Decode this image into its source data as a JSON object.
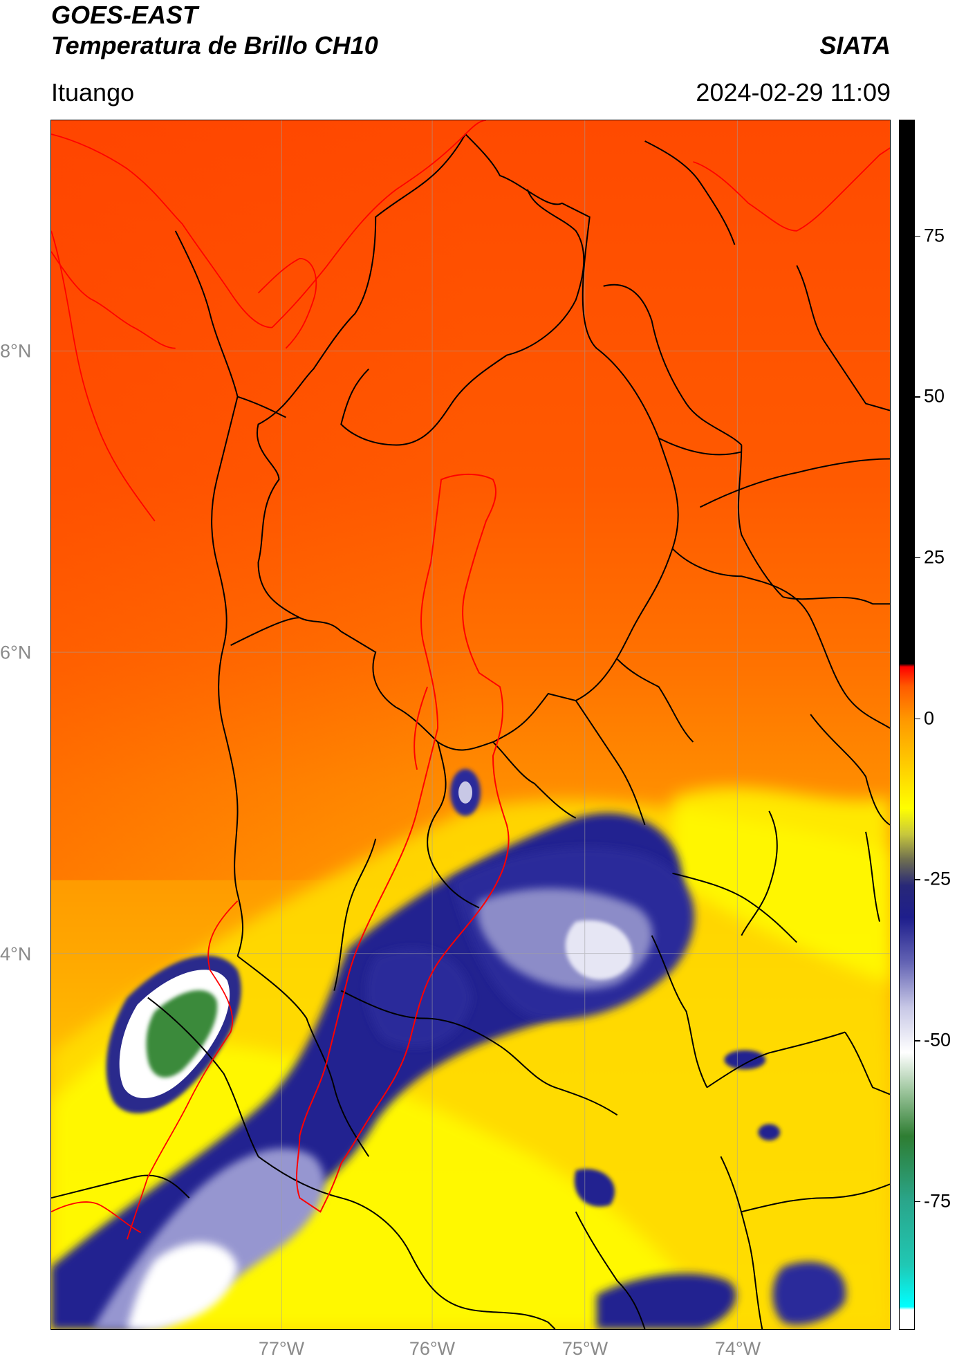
{
  "header": {
    "title_line1": "GOES-EAST",
    "title_line2": "Temperatura de Brillo CH10",
    "organization": "SIATA",
    "region": "Ituango",
    "timestamp": "2024-02-29 11:09"
  },
  "map": {
    "extent": {
      "lon_min": -78.5,
      "lon_max": -73.0,
      "lat_min": 1.9,
      "lat_max": 9.45
    },
    "lat_ticks": [
      {
        "lat": 8,
        "label": "8°N"
      },
      {
        "lat": 6,
        "label": "6°N"
      },
      {
        "lat": 4,
        "label": "4°N"
      }
    ],
    "lon_ticks": [
      {
        "lon": -77,
        "label": "77°W"
      },
      {
        "lon": -76,
        "label": "76°W"
      },
      {
        "lon": -75,
        "label": "75°W"
      },
      {
        "lon": -74,
        "label": "74°W"
      }
    ],
    "colors": {
      "coastline": "#ff0000",
      "admin_boundaries": "#000000",
      "basin_outline": "#ff0000",
      "gridlines": "#a0a0a0"
    }
  },
  "colorbar": {
    "range": [
      -95,
      93
    ],
    "ticks": [
      {
        "value": 75,
        "label": "75"
      },
      {
        "value": 50,
        "label": "50"
      },
      {
        "value": 25,
        "label": "25"
      },
      {
        "value": 0,
        "label": "0"
      },
      {
        "value": -25,
        "label": "-25"
      },
      {
        "value": -50,
        "label": "-50"
      },
      {
        "value": -75,
        "label": "-75"
      }
    ],
    "stops": [
      {
        "value": -95,
        "color": "#ffffff"
      },
      {
        "value": -92,
        "color": "#ffffff"
      },
      {
        "value": -91.5,
        "color": "#00ffff"
      },
      {
        "value": -85,
        "color": "#20c8b4"
      },
      {
        "value": -75,
        "color": "#2aa58a"
      },
      {
        "value": -65,
        "color": "#2e7d32"
      },
      {
        "value": -58,
        "color": "#9cc59c"
      },
      {
        "value": -52,
        "color": "#ffffff"
      },
      {
        "value": -45,
        "color": "#c8c8e6"
      },
      {
        "value": -38,
        "color": "#6464b4"
      },
      {
        "value": -31,
        "color": "#1e1e8c"
      },
      {
        "value": -26,
        "color": "#282878"
      },
      {
        "value": -22,
        "color": "#6e6e50"
      },
      {
        "value": -18,
        "color": "#c8c83c"
      },
      {
        "value": -14,
        "color": "#ffff00"
      },
      {
        "value": -8,
        "color": "#ffd200"
      },
      {
        "value": 0,
        "color": "#ff9600"
      },
      {
        "value": 5,
        "color": "#ff5a00"
      },
      {
        "value": 8,
        "color": "#ff0000"
      },
      {
        "value": 8.5,
        "color": "#000000"
      },
      {
        "value": 93,
        "color": "#000000"
      }
    ]
  }
}
